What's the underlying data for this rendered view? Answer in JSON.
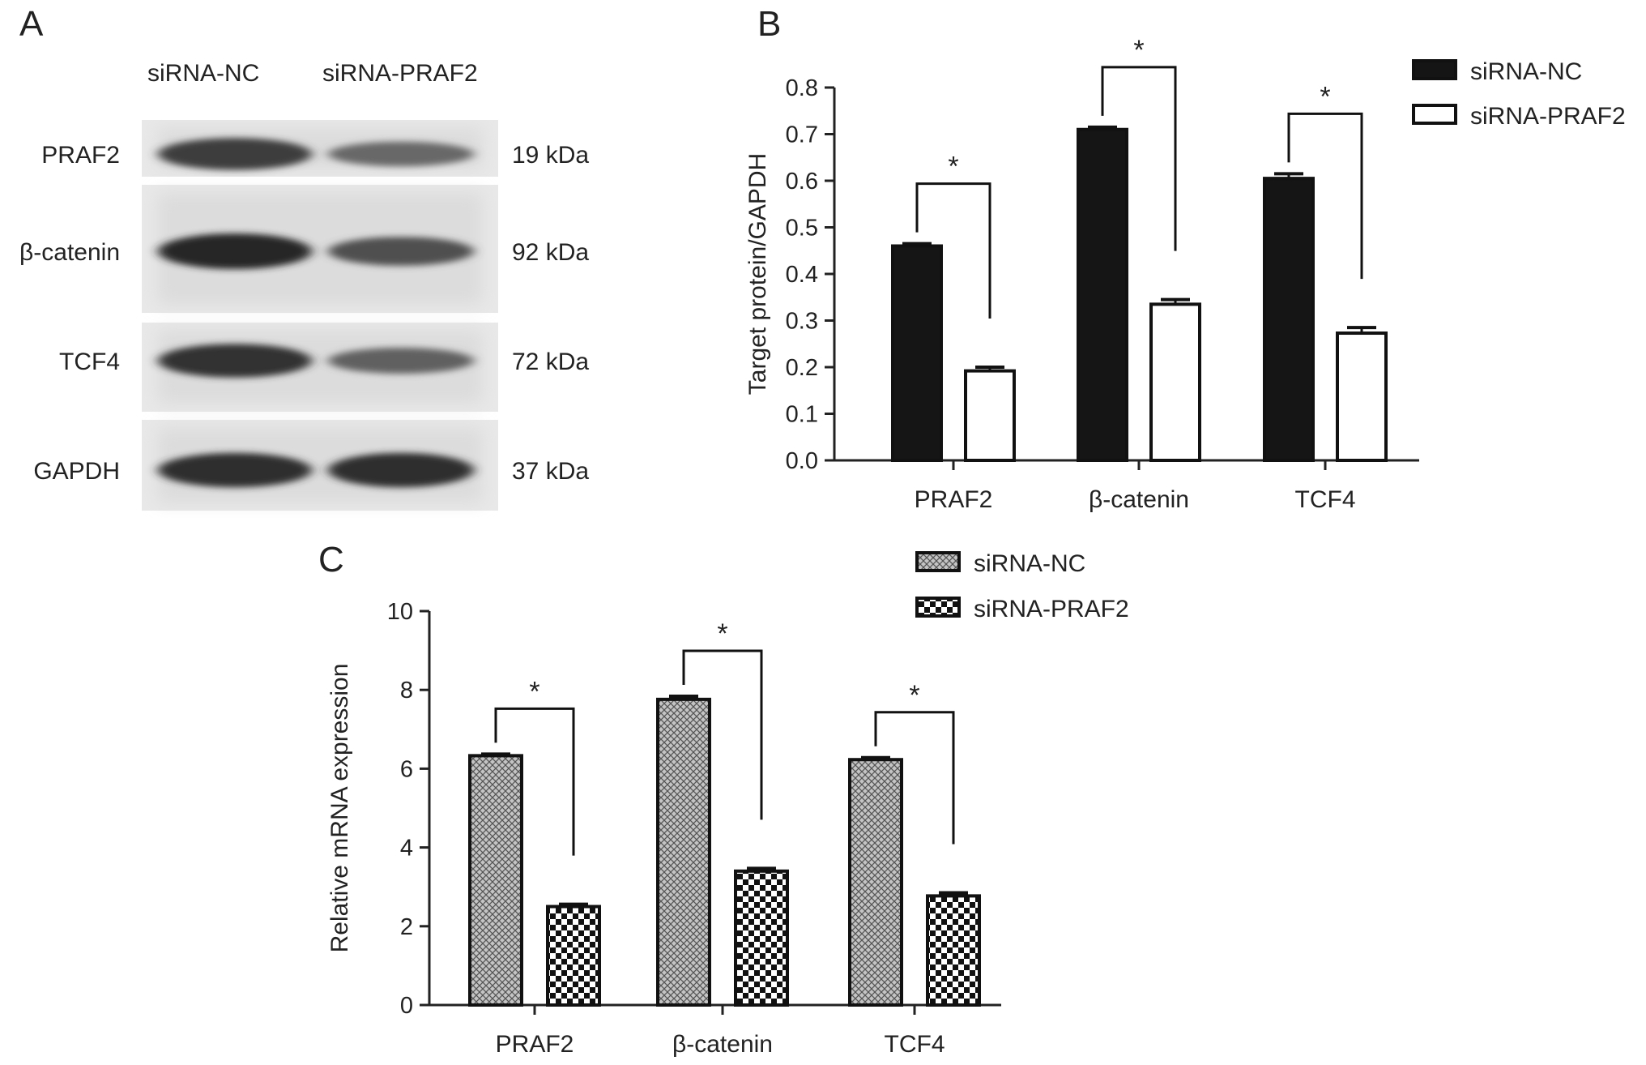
{
  "panel_a": {
    "letter": "A",
    "lanes": [
      "siRNA-NC",
      "siRNA-PRAF2"
    ],
    "blots": [
      {
        "label": "PRAF2",
        "size": "19 kDa",
        "nc": 0.85,
        "si": 0.55
      },
      {
        "label": "β-catenin",
        "size": "92 kDa",
        "nc": 1.0,
        "si": 0.72
      },
      {
        "label": "TCF4",
        "size": "72 kDa",
        "nc": 0.92,
        "si": 0.6
      },
      {
        "label": "GAPDH",
        "size": "37 kDa",
        "nc": 0.95,
        "si": 0.95
      }
    ]
  },
  "chart_data": [
    {
      "panel": "B",
      "type": "bar",
      "title": "",
      "xlabel": "",
      "ylabel": "Target protein/GAPDH",
      "ylim": [
        0,
        0.8
      ],
      "yticks": [
        "0.0",
        "0.1",
        "0.2",
        "0.3",
        "0.4",
        "0.5",
        "0.6",
        "0.7",
        "0.8"
      ],
      "categories": [
        "PRAF2",
        "β-catenin",
        "TCF4"
      ],
      "series": [
        {
          "name": "siRNA-NC",
          "values": [
            0.46,
            0.71,
            0.605
          ],
          "errors": [
            0.005,
            0.005,
            0.01
          ],
          "color": "#151515"
        },
        {
          "name": "siRNA-PRAF2",
          "values": [
            0.192,
            0.335,
            0.273
          ],
          "errors": [
            0.008,
            0.01,
            0.012
          ],
          "color": "#ffffff"
        }
      ],
      "significance": [
        "*",
        "*",
        "*"
      ],
      "legend": "top-right"
    },
    {
      "panel": "C",
      "type": "bar",
      "title": "",
      "xlabel": "",
      "ylabel": "Relative mRNA expression",
      "ylim": [
        0,
        10
      ],
      "yticks": [
        "0",
        "2",
        "4",
        "6",
        "8",
        "10"
      ],
      "categories": [
        "PRAF2",
        "β-catenin",
        "TCF4"
      ],
      "series": [
        {
          "name": "siRNA-NC",
          "values": [
            6.33,
            7.76,
            6.23
          ],
          "errors": [
            0.04,
            0.08,
            0.05
          ],
          "color": "#bcbcbc"
        },
        {
          "name": "siRNA-PRAF2",
          "values": [
            2.5,
            3.4,
            2.77
          ],
          "errors": [
            0.06,
            0.07,
            0.08
          ],
          "color": "#ffffff"
        }
      ],
      "significance": [
        "*",
        "*",
        "*"
      ],
      "legend": "top"
    }
  ]
}
